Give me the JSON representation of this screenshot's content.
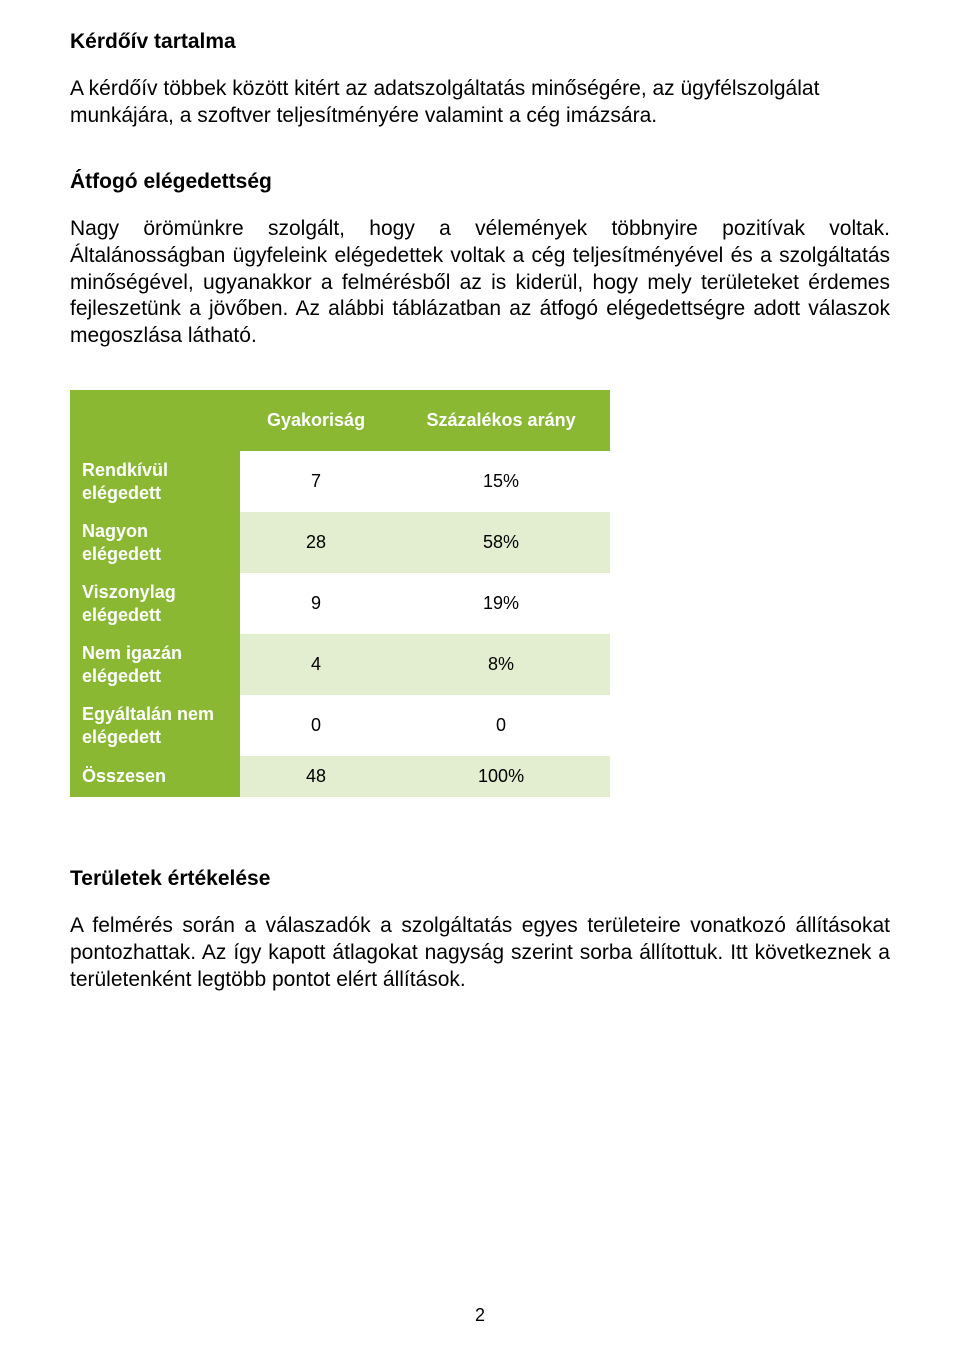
{
  "section1": {
    "heading": "Kérdőív tartalma",
    "paragraph": "A kérdőív többek között kitért az adatszolgáltatás minőségére, az ügyfélszolgálat munkájára, a szoftver teljesítményére valamint a cég imázsára."
  },
  "section2": {
    "heading": "Átfogó elégedettség",
    "paragraph": "Nagy örömünkre szolgált, hogy a vélemények többnyire pozitívak voltak. Általánosságban ügyfeleink elégedettek voltak a cég teljesítményével és a szolgáltatás minőségével, ugyanakkor a felmérésből az is kiderül, hogy mely területeket érdemes fejleszetünk a jövőben. Az alábbi táblázatban az átfogó elégedettségre adott válaszok megoszlása látható."
  },
  "table": {
    "columns": [
      "",
      "Gyakoriság",
      "Százalékos arány"
    ],
    "rows": [
      {
        "label": "Rendkívül elégedett",
        "freq": "7",
        "pct": "15%"
      },
      {
        "label": "Nagyon elégedett",
        "freq": "28",
        "pct": "58%"
      },
      {
        "label": "Viszonylag elégedett",
        "freq": "9",
        "pct": "19%"
      },
      {
        "label": "Nem igazán elégedett",
        "freq": "4",
        "pct": "8%"
      },
      {
        "label": "Egyáltalán nem elégedett",
        "freq": "0",
        "pct": "0"
      },
      {
        "label": "Összesen",
        "freq": "48",
        "pct": "100%"
      }
    ],
    "header_bg": "#8ab833",
    "header_text_color": "#ffffff",
    "row_label_bg": "#8ab833",
    "row_label_text_color": "#ffffff",
    "row_alt_bg": "#e3edd0",
    "row_bg": "#ffffff",
    "col_widths": [
      "170px",
      "150px",
      "220px"
    ]
  },
  "section3": {
    "heading": "Területek értékelése",
    "paragraph": "A felmérés során a válaszadók a szolgáltatás egyes területeire vonatkozó állításokat pontozhattak. Az így kapott átlagokat nagyság szerint sorba állítottuk. Itt következnek a területenként legtöbb pontot elért állítások."
  },
  "page_number": "2"
}
